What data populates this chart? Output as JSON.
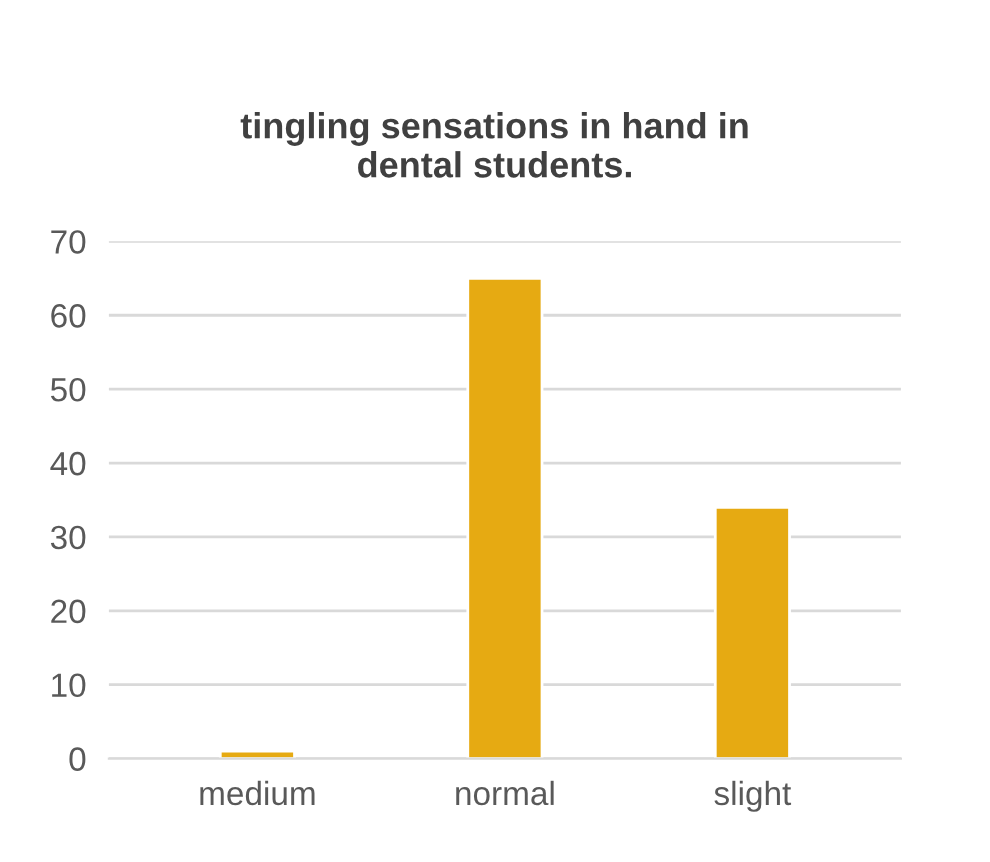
{
  "chart_data": {
    "type": "bar",
    "title": "tingling sensations in hand in\ndental students.",
    "categories": [
      "medium",
      "normal",
      "slight"
    ],
    "values": [
      1,
      65,
      34
    ],
    "color": "#e6aa12",
    "ylim": [
      0,
      70
    ],
    "yticks": [
      0,
      10,
      20,
      30,
      40,
      50,
      60,
      70
    ],
    "grid": "y",
    "legend": false
  }
}
